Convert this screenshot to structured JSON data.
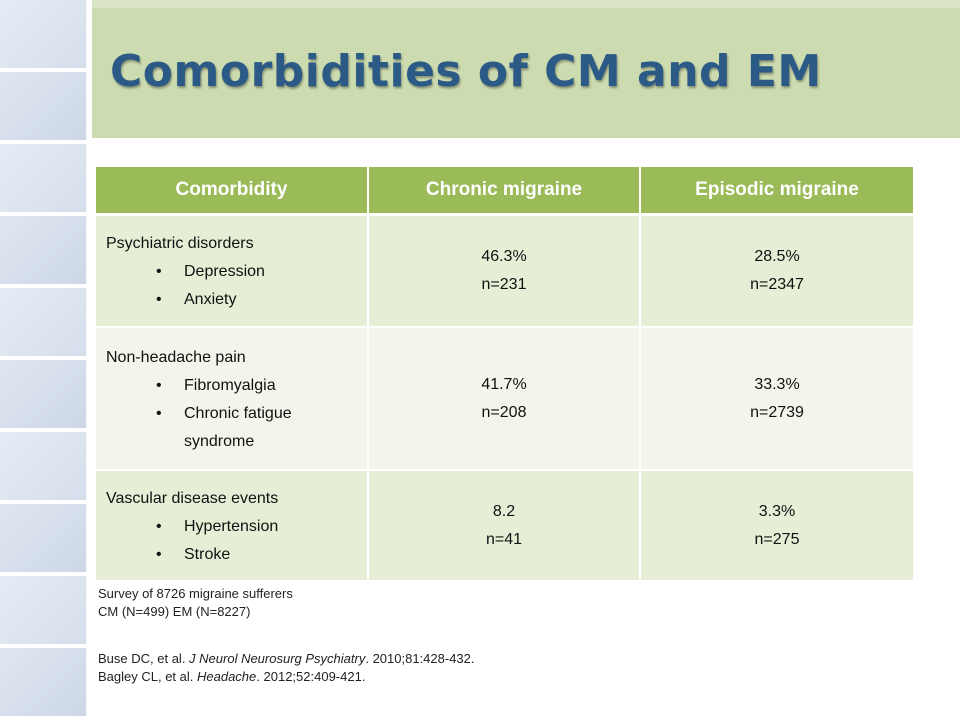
{
  "slide": {
    "title": "Comorbidities of CM and EM"
  },
  "table": {
    "headers": [
      "Comorbidity",
      "Chronic migraine",
      "Episodic migraine"
    ],
    "rows": [
      {
        "category": "Psychiatric disorders",
        "items": [
          "Depression",
          "Anxiety"
        ],
        "cm": {
          "pct": "46.3%",
          "n": "n=231"
        },
        "em": {
          "pct": "28.5%",
          "n": "n=2347"
        }
      },
      {
        "category": "Non-headache pain",
        "items": [
          "Fibromyalgia",
          "Chronic fatigue syndrome"
        ],
        "cm": {
          "pct": "41.7%",
          "n": "n=208"
        },
        "em": {
          "pct": "33.3%",
          "n": "n=2739"
        }
      },
      {
        "category": "Vascular disease events",
        "items": [
          "Hypertension",
          "Stroke"
        ],
        "cm": {
          "pct": "8.2",
          "n": "n=41"
        },
        "em": {
          "pct": "3.3%",
          "n": "n=275"
        }
      }
    ]
  },
  "notes": {
    "survey_line1": "Survey of 8726 migraine sufferers",
    "survey_line2": "CM (N=499) EM (N=8227)",
    "ref1": {
      "authors": "Buse DC, et al. ",
      "journal": "J Neurol Neurosurg Psychiatry",
      "details": ". 2010;81:428-432."
    },
    "ref2": {
      "authors": "Bagley CL, et al. ",
      "journal": "Headache",
      "details": ". 2012;52:409-421."
    }
  },
  "colors": {
    "header_bg": "#9bbb59",
    "row_odd": "#e6eed6",
    "row_even": "#f2f6ea",
    "title": "#2b5a86",
    "banner": "#cddcb0"
  }
}
